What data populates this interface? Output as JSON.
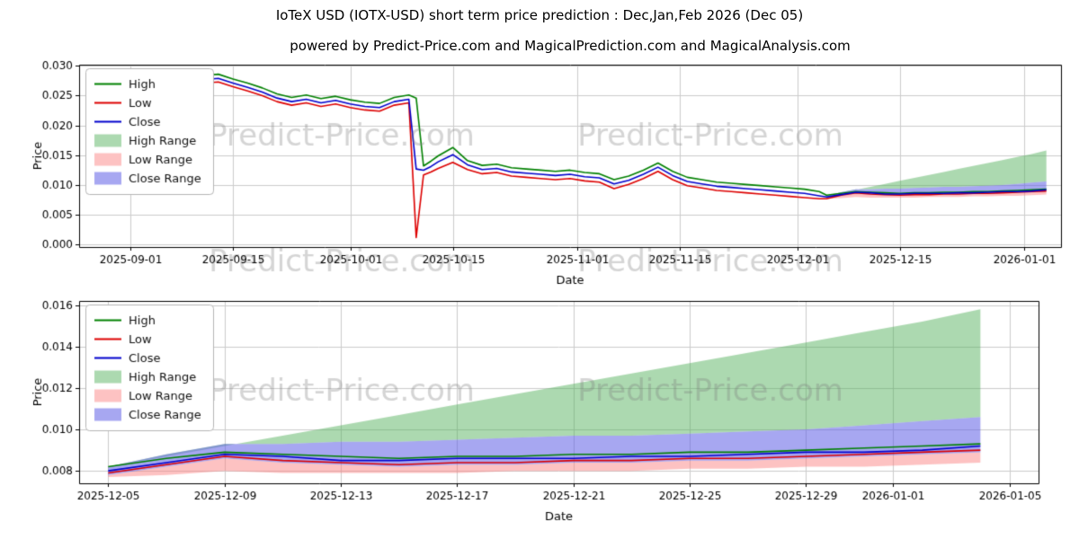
{
  "page": {
    "title": "IoTeX USD (IOTX-USD) short term price prediction : Dec,Jan,Feb 2026 (Dec 05)",
    "subtitle": "powered by Predict-Price.com and MagicalPrediction.com and MagicalAnalysis.com",
    "watermark": "Predict-Price.com"
  },
  "colors": {
    "high": "#008000",
    "low": "#dd0000",
    "close": "#0000cc",
    "high_range": "rgba(70,170,80,0.45)",
    "low_range": "rgba(250,120,120,0.45)",
    "close_range": "rgba(95,95,230,0.55)",
    "grid": "#cccccc",
    "axis": "#000000",
    "watermark": "rgba(125,125,125,0.32)"
  },
  "legend": [
    {
      "label": "High",
      "type": "line",
      "color_key": "high"
    },
    {
      "label": "Low",
      "type": "line",
      "color_key": "low"
    },
    {
      "label": "Close",
      "type": "line",
      "color_key": "close"
    },
    {
      "label": "High Range",
      "type": "patch",
      "color_key": "high_range"
    },
    {
      "label": "Low Range",
      "type": "patch",
      "color_key": "low_range"
    },
    {
      "label": "Close Range",
      "type": "patch",
      "color_key": "close_range"
    }
  ],
  "prediction": {
    "dates": [
      "2025-12-05",
      "2025-12-07",
      "2025-12-09",
      "2025-12-11",
      "2025-12-13",
      "2025-12-15",
      "2025-12-17",
      "2025-12-19",
      "2025-12-21",
      "2025-12-23",
      "2025-12-25",
      "2025-12-27",
      "2025-12-29",
      "2025-12-31",
      "2026-01-02",
      "2026-01-04"
    ],
    "high": [
      0.0082,
      0.0086,
      0.0089,
      0.0088,
      0.0087,
      0.0086,
      0.0087,
      0.0087,
      0.0088,
      0.0088,
      0.0089,
      0.0089,
      0.009,
      0.0091,
      0.0092,
      0.0093
    ],
    "low": [
      0.0079,
      0.0083,
      0.0087,
      0.0085,
      0.0084,
      0.0083,
      0.0084,
      0.0084,
      0.0085,
      0.0085,
      0.0086,
      0.0086,
      0.0087,
      0.0088,
      0.0089,
      0.009
    ],
    "close": [
      0.008,
      0.0084,
      0.0088,
      0.0087,
      0.0085,
      0.0085,
      0.0086,
      0.0086,
      0.0086,
      0.0087,
      0.0087,
      0.0088,
      0.0089,
      0.0089,
      0.009,
      0.0092
    ],
    "high_range_upper": [
      0.0082,
      0.0087,
      0.0092,
      0.0097,
      0.0102,
      0.0107,
      0.0112,
      0.0117,
      0.0122,
      0.0127,
      0.0132,
      0.0137,
      0.0142,
      0.0147,
      0.0152,
      0.0158
    ],
    "close_range_upper": [
      0.0082,
      0.0088,
      0.0093,
      0.0093,
      0.0094,
      0.0094,
      0.0095,
      0.0096,
      0.0097,
      0.0097,
      0.0098,
      0.0099,
      0.01,
      0.0102,
      0.0104,
      0.0106
    ],
    "close_range_lower": [
      0.0078,
      0.0082,
      0.0086,
      0.0084,
      0.0083,
      0.0082,
      0.0083,
      0.0083,
      0.0084,
      0.0084,
      0.0085,
      0.0085,
      0.0086,
      0.0087,
      0.0088,
      0.0089
    ],
    "low_range_lower": [
      0.0077,
      0.0078,
      0.008,
      0.0079,
      0.0079,
      0.0079,
      0.0079,
      0.008,
      0.008,
      0.008,
      0.0081,
      0.0081,
      0.0082,
      0.0082,
      0.0083,
      0.0084
    ]
  },
  "chart_data": [
    {
      "id": "full-history-chart",
      "type": "line",
      "xlabel": "Date",
      "ylabel": "Price",
      "ylim": [
        -0.0004,
        0.0302
      ],
      "yticks": [
        0.0,
        0.005,
        0.01,
        0.015,
        0.02,
        0.025,
        0.03
      ],
      "ytick_labels": [
        "0.000",
        "0.005",
        "0.010",
        "0.015",
        "0.020",
        "0.025",
        "0.030"
      ],
      "xdomain": [
        "2025-08-25",
        "2026-01-06"
      ],
      "xticks": [
        "2025-09-01",
        "2025-09-15",
        "2025-10-01",
        "2025-10-15",
        "2025-11-01",
        "2025-11-15",
        "2025-12-01",
        "2025-12-15",
        "2026-01-01"
      ],
      "grid": true,
      "legend_position": "upper-left",
      "include_history": true,
      "include_prediction": true,
      "historical": {
        "dates": [
          "2025-08-26",
          "2025-08-28",
          "2025-08-30",
          "2025-09-01",
          "2025-09-03",
          "2025-09-05",
          "2025-09-07",
          "2025-09-09",
          "2025-09-11",
          "2025-09-13",
          "2025-09-15",
          "2025-09-17",
          "2025-09-19",
          "2025-09-21",
          "2025-09-23",
          "2025-09-25",
          "2025-09-27",
          "2025-09-29",
          "2025-10-01",
          "2025-10-03",
          "2025-10-05",
          "2025-10-07",
          "2025-10-09",
          "2025-10-10",
          "2025-10-11",
          "2025-10-12",
          "2025-10-13",
          "2025-10-15",
          "2025-10-17",
          "2025-10-19",
          "2025-10-21",
          "2025-10-23",
          "2025-10-25",
          "2025-10-27",
          "2025-10-29",
          "2025-10-31",
          "2025-11-02",
          "2025-11-04",
          "2025-11-06",
          "2025-11-08",
          "2025-11-10",
          "2025-11-12",
          "2025-11-14",
          "2025-11-16",
          "2025-11-18",
          "2025-11-20",
          "2025-11-22",
          "2025-11-24",
          "2025-11-26",
          "2025-11-28",
          "2025-11-30",
          "2025-12-02",
          "2025-12-04",
          "2025-12-05"
        ],
        "high": [
          0.0278,
          0.0272,
          0.0277,
          0.027,
          0.0263,
          0.0271,
          0.0274,
          0.028,
          0.0284,
          0.0286,
          0.0278,
          0.0271,
          0.0263,
          0.0253,
          0.0247,
          0.0251,
          0.0245,
          0.0249,
          0.0243,
          0.0239,
          0.0237,
          0.0247,
          0.0251,
          0.0246,
          0.0132,
          0.014,
          0.0149,
          0.0163,
          0.0141,
          0.0133,
          0.0135,
          0.0129,
          0.0127,
          0.0125,
          0.0123,
          0.0125,
          0.0121,
          0.0119,
          0.0109,
          0.0115,
          0.0125,
          0.0137,
          0.0123,
          0.0113,
          0.0109,
          0.0105,
          0.0103,
          0.0101,
          0.0099,
          0.0097,
          0.0095,
          0.0093,
          0.0089,
          0.0083
        ],
        "low": [
          0.0265,
          0.0259,
          0.0264,
          0.0257,
          0.025,
          0.0258,
          0.0261,
          0.0267,
          0.0271,
          0.0273,
          0.0265,
          0.0258,
          0.025,
          0.024,
          0.0234,
          0.0238,
          0.0232,
          0.0236,
          0.023,
          0.0226,
          0.0224,
          0.0234,
          0.0238,
          0.0012,
          0.0117,
          0.0122,
          0.0128,
          0.0138,
          0.0126,
          0.0119,
          0.0121,
          0.0115,
          0.0113,
          0.0111,
          0.0109,
          0.0111,
          0.0107,
          0.0105,
          0.0094,
          0.0101,
          0.0111,
          0.0123,
          0.0109,
          0.0099,
          0.0095,
          0.0091,
          0.0089,
          0.0087,
          0.0085,
          0.0083,
          0.0081,
          0.0079,
          0.0077,
          0.0077
        ],
        "close": [
          0.0271,
          0.0265,
          0.027,
          0.0263,
          0.0256,
          0.0264,
          0.0267,
          0.0273,
          0.0277,
          0.0279,
          0.0271,
          0.0264,
          0.0256,
          0.0246,
          0.024,
          0.0244,
          0.0238,
          0.0242,
          0.0236,
          0.0232,
          0.023,
          0.024,
          0.0244,
          0.0127,
          0.0125,
          0.0131,
          0.0139,
          0.0151,
          0.0134,
          0.0126,
          0.0128,
          0.0122,
          0.012,
          0.0118,
          0.0116,
          0.0118,
          0.0114,
          0.0112,
          0.0102,
          0.0108,
          0.0118,
          0.013,
          0.0116,
          0.0106,
          0.0102,
          0.0098,
          0.0096,
          0.0094,
          0.0092,
          0.009,
          0.0088,
          0.0086,
          0.0082,
          0.008
        ]
      }
    },
    {
      "id": "prediction-zoom-chart",
      "type": "line",
      "xlabel": "Date",
      "ylabel": "Price",
      "ylim": [
        0.0074,
        0.0162
      ],
      "yticks": [
        0.008,
        0.01,
        0.012,
        0.014,
        0.016
      ],
      "ytick_labels": [
        "0.008",
        "0.010",
        "0.012",
        "0.014",
        "0.016"
      ],
      "xdomain": [
        "2025-12-04",
        "2026-01-06"
      ],
      "xticks": [
        "2025-12-05",
        "2025-12-09",
        "2025-12-13",
        "2025-12-17",
        "2025-12-21",
        "2025-12-25",
        "2025-12-29",
        "2026-01-01",
        "2026-01-05"
      ],
      "grid": true,
      "legend_position": "upper-left",
      "include_history": false,
      "include_prediction": true
    }
  ]
}
